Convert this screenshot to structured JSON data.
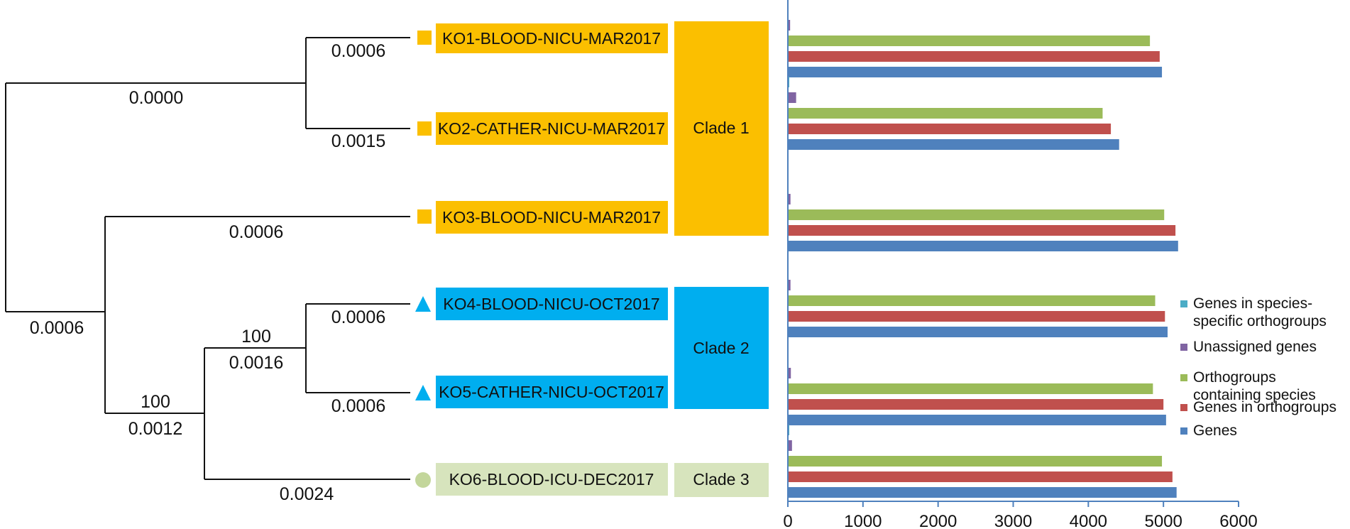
{
  "colors": {
    "clade1": "#FBBF00",
    "clade2": "#00AEEF",
    "clade3": "#D7E4BD",
    "clade3_marker": "#C3D69B",
    "tree": "#111111",
    "axis": "#4F81BD"
  },
  "tree": {
    "branch_lengths": {
      "root_to_clade1": "0.0000",
      "clade1_to_ko1": "0.0006",
      "clade1_to_ko2": "0.0015",
      "root_to_subtree": "0.0006",
      "subtree_to_ko3": "0.0006",
      "subtree_to_inner": "0.0012",
      "inner_to_clade2": "0.0016",
      "clade2_to_ko4": "0.0006",
      "clade2_to_ko5": "0.0006",
      "inner_to_ko6": "0.0024"
    },
    "bootstrap": {
      "inner": "100",
      "clade2": "100"
    }
  },
  "samples": [
    {
      "id": "KO1-BLOOD-NICU-MAR2017",
      "marker": "square-icon",
      "clade": "clade1"
    },
    {
      "id": "KO2-CATHER-NICU-MAR2017",
      "marker": "square-icon",
      "clade": "clade1"
    },
    {
      "id": "KO3-BLOOD-NICU-MAR2017",
      "marker": "square-icon",
      "clade": "clade1"
    },
    {
      "id": "KO4-BLOOD-NICU-OCT2017",
      "marker": "triangle-icon",
      "clade": "clade2"
    },
    {
      "id": "KO5-CATHER-NICU-OCT2017",
      "marker": "triangle-icon",
      "clade": "clade2"
    },
    {
      "id": "KO6-BLOOD-ICU-DEC2017",
      "marker": "circle-icon",
      "clade": "clade3"
    }
  ],
  "clades": [
    {
      "key": "clade1",
      "label": "Clade 1"
    },
    {
      "key": "clade2",
      "label": "Clade 2"
    },
    {
      "key": "clade3",
      "label": "Clade 3"
    }
  ],
  "chart_data": {
    "type": "bar",
    "orientation": "horizontal",
    "title": "",
    "xlabel": "",
    "ylabel": "",
    "xlim": [
      0,
      6000
    ],
    "xticks": [
      0,
      1000,
      2000,
      3000,
      4000,
      5000,
      6000
    ],
    "grid": false,
    "legend_position": "right",
    "categories": [
      "KO1-BLOOD-NICU-MAR2017",
      "KO2-CATHER-NICU-MAR2017",
      "KO3-BLOOD-NICU-MAR2017",
      "KO4-BLOOD-NICU-OCT2017",
      "KO5-CATHER-NICU-OCT2017",
      "KO6-BLOOD-ICU-DEC2017"
    ],
    "series": [
      {
        "name": "Genes in species-specific orthogroups",
        "legend_lines": [
          "Genes in species-",
          "specific orthogroups"
        ],
        "color": "#4BACC6",
        "values": [
          0,
          8,
          0,
          0,
          0,
          8
        ]
      },
      {
        "name": "Unassigned genes",
        "legend_lines": [
          "Unassigned genes"
        ],
        "color": "#8064A2",
        "values": [
          30,
          110,
          35,
          35,
          40,
          55
        ]
      },
      {
        "name": "Orthogroups containing species",
        "legend_lines": [
          "Orthogroups",
          "containing species"
        ],
        "color": "#9BBB59",
        "values": [
          4820,
          4190,
          5010,
          4890,
          4860,
          4980
        ]
      },
      {
        "name": "Genes in orthogroups",
        "legend_lines": [
          "Genes in orthogroups"
        ],
        "color": "#C0504D",
        "values": [
          4950,
          4300,
          5160,
          5020,
          5000,
          5120
        ]
      },
      {
        "name": "Genes",
        "legend_lines": [
          "Genes"
        ],
        "color": "#4F81BD",
        "values": [
          4980,
          4410,
          5195,
          5055,
          5035,
          5175
        ]
      }
    ]
  }
}
